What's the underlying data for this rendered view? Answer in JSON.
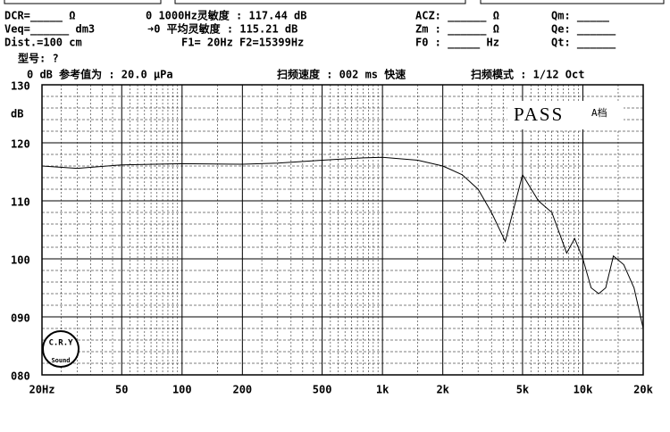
{
  "header": {
    "rows": [
      [
        "DCR=_____ Ω",
        "0 1000Hz灵敏度 : 117.44 dB",
        "ACZ: ______ Ω",
        "Qm: _____"
      ],
      [
        "Veq=______ dm3",
        "➜0 平均灵敏度 : 115.21 dB",
        "Zm : ______ Ω",
        "Qe: ______"
      ],
      [
        "Dist.=100 cm",
        "F1=  20Hz  F2=15399Hz",
        "F0 : _____ Hz",
        "Qt: ______"
      ],
      [
        "型号:  ?"
      ],
      [
        "0 dB 参考值为 : 20.0 μPa",
        "扫频速度 : 002 ms 快速",
        "扫频模式 : 1/12 Oct"
      ]
    ]
  },
  "chart_data": {
    "type": "line",
    "xscale": "log",
    "ylabel": "dB",
    "status": "PASS",
    "status_note": "A档",
    "logo": [
      "C.R.Y",
      "Sound"
    ],
    "x": [
      20,
      30,
      50,
      100,
      200,
      300,
      500,
      800,
      1000,
      1500,
      2000,
      2500,
      3000,
      3500,
      4100,
      5000,
      6000,
      7000,
      8300,
      9100,
      10000,
      11000,
      12000,
      13000,
      14200,
      16000,
      18000,
      20000
    ],
    "series": [
      {
        "name": "response",
        "color": "#000000",
        "values": [
          116,
          115.6,
          116.2,
          116.4,
          116.3,
          116.5,
          117,
          117.4,
          117.5,
          117,
          116,
          114.5,
          112,
          108,
          103,
          114.5,
          110,
          108,
          101,
          103.5,
          100,
          95,
          94,
          95,
          100.5,
          99,
          95,
          88
        ]
      }
    ],
    "xlim": [
      20,
      20000
    ],
    "xticks": [
      {
        "value": 20,
        "label": "20Hz"
      },
      50,
      100,
      200,
      500,
      {
        "value": 1000,
        "label": "1k"
      },
      {
        "value": 2000,
        "label": "2k"
      },
      {
        "value": 5000,
        "label": "5k"
      },
      {
        "value": 10000,
        "label": "10k"
      },
      {
        "value": 20000,
        "label": "20k"
      }
    ],
    "ylim": [
      80,
      130
    ],
    "yticks": [
      {
        "value": 80,
        "label": "080"
      },
      {
        "value": 90,
        "label": "090"
      },
      100,
      110,
      120,
      130
    ],
    "grid": true
  }
}
